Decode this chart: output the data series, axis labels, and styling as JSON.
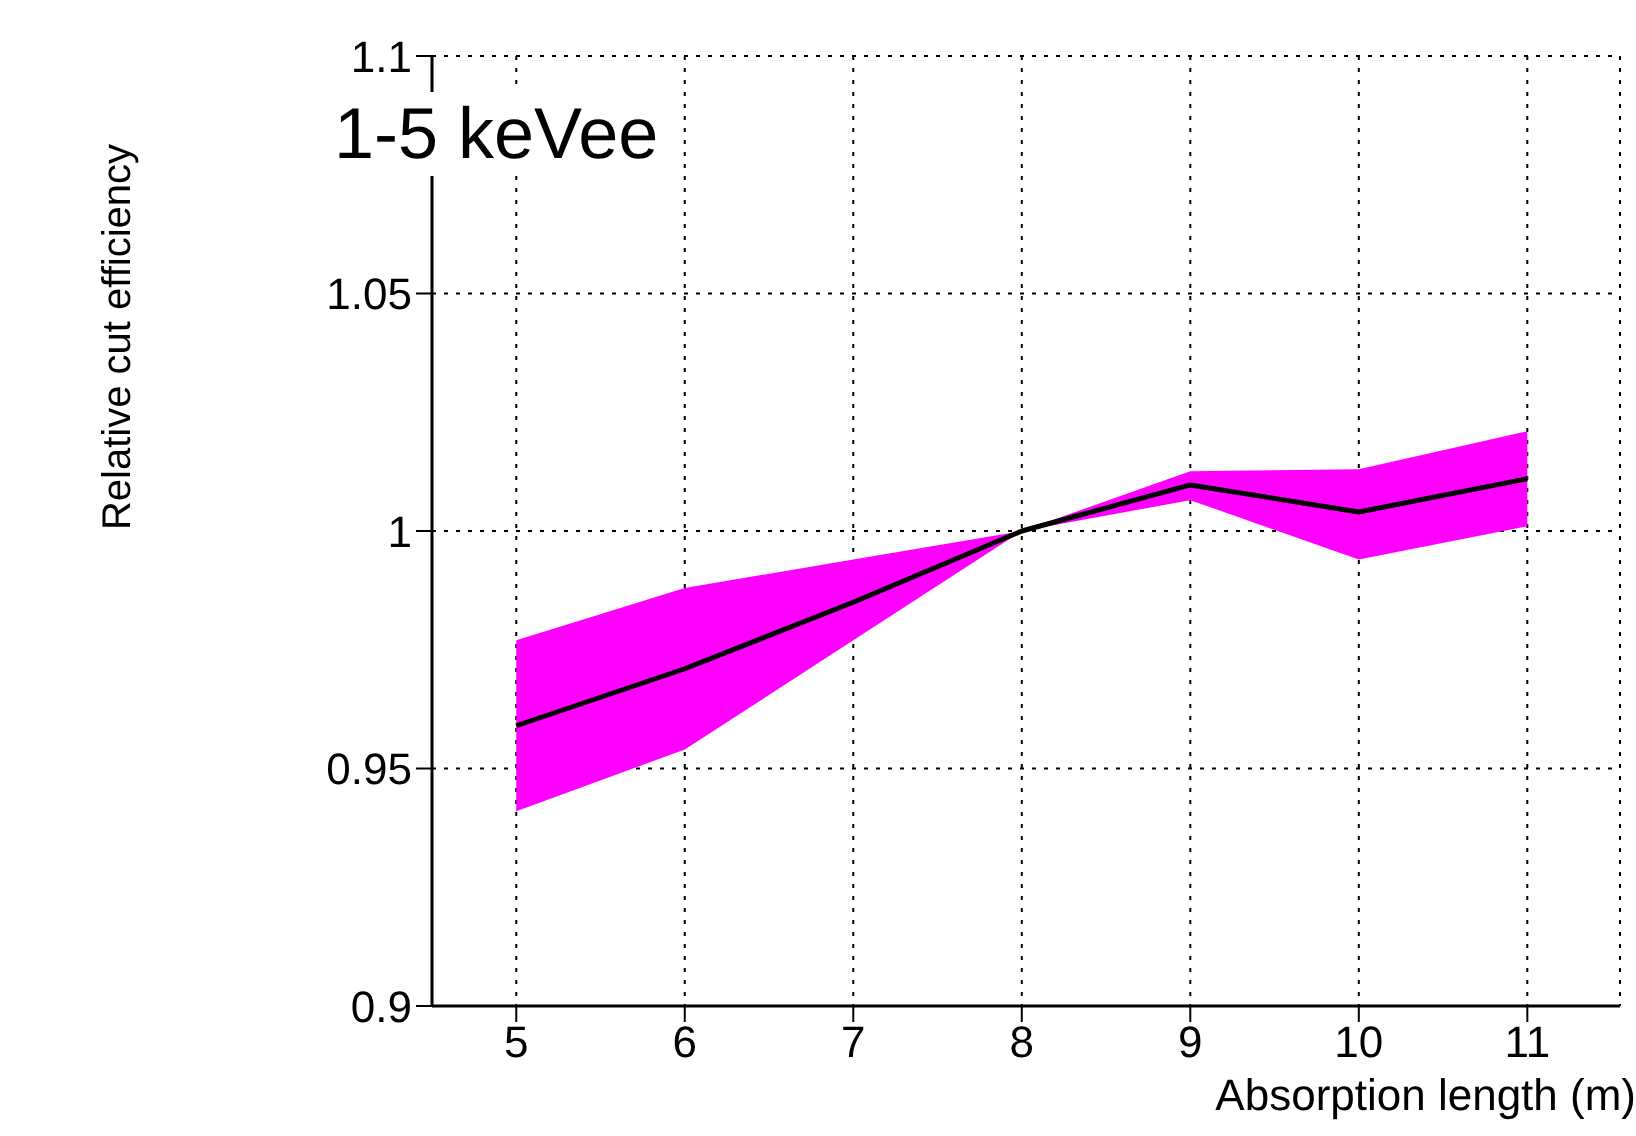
{
  "chart_data": {
    "type": "line",
    "xlabel": "Absorption length (m)",
    "ylabel": "Relative cut efficiency",
    "annotations": [
      "1-5 keVee"
    ],
    "x": [
      5,
      6,
      7,
      8,
      9,
      10,
      11
    ],
    "series": [
      {
        "color": "#000000",
        "values": [
          0.959,
          0.971,
          0.985,
          1.0,
          1.0097,
          1.004,
          1.011
        ],
        "lower": [
          0.941,
          0.954,
          0.977,
          1.0,
          1.0065,
          0.994,
          1.001
        ],
        "upper": [
          0.977,
          0.988,
          0.994,
          1.0,
          1.0126,
          1.013,
          1.021
        ]
      }
    ],
    "xlim": [
      4.5,
      11.55
    ],
    "xticks": [
      5,
      6,
      7,
      8,
      9,
      10,
      11
    ],
    "ylim": [
      0.9,
      1.1
    ],
    "yticks": [
      0.9,
      0.95,
      1,
      1.05,
      1.1
    ],
    "grid": true,
    "marker": "none",
    "line_style": "solid"
  }
}
